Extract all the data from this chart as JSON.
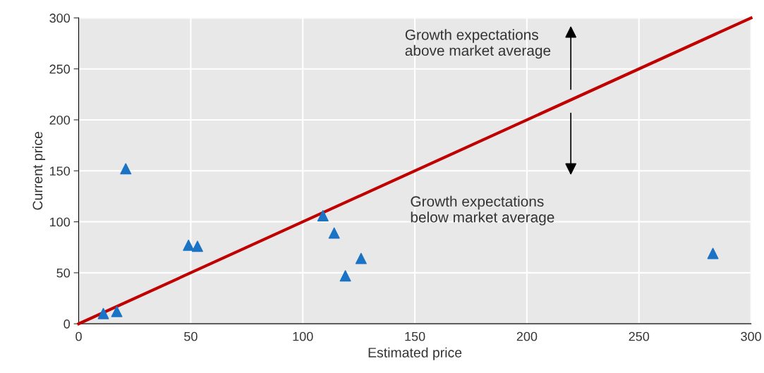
{
  "chart_data": {
    "type": "scatter",
    "xlabel": "Estimated price",
    "ylabel": "Current price",
    "xlim": [
      0,
      300
    ],
    "ylim": [
      0,
      300
    ],
    "xticks": [
      0,
      50,
      100,
      150,
      200,
      250,
      300
    ],
    "yticks": [
      0,
      50,
      100,
      150,
      200,
      250,
      300
    ],
    "grid": true,
    "legend": false,
    "marker": "triangle",
    "series": [
      {
        "color": "#1a73c4",
        "x": [
          11,
          17,
          21,
          49,
          53,
          109,
          114,
          119,
          126,
          283
        ],
        "values": [
          10,
          12,
          152,
          77,
          76,
          106,
          89,
          47,
          64,
          69
        ]
      },
      {
        "type": "line",
        "color": "#c00000",
        "x": [
          0,
          300
        ],
        "values": [
          0,
          300
        ],
        "marker": "none",
        "line_style": "solid"
      }
    ],
    "annotations": [
      "Growth expectations\nabove market average",
      "Growth expectations\nbelow market average"
    ]
  }
}
